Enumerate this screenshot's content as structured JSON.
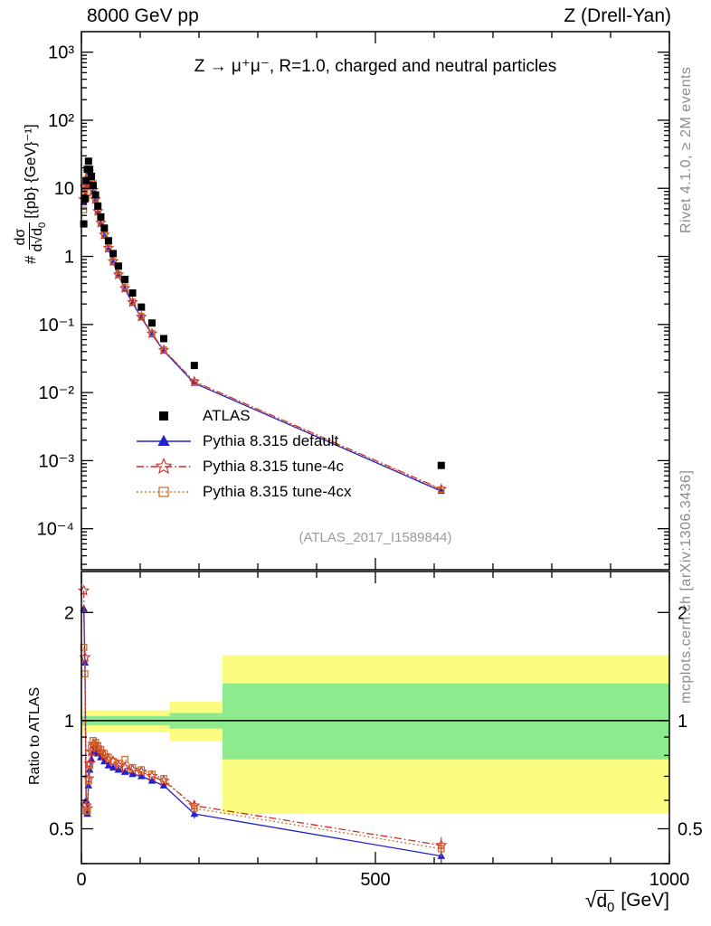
{
  "header": {
    "left": "8000 GeV pp",
    "right": "Z (Drell-Yan)"
  },
  "main_title": "Z → μ⁺μ⁻, R=1.0, charged and neutral particles",
  "watermark": "(ATLAS_2017_I1589844)",
  "side_captions": {
    "top": "Rivet 4.1.0, ≥ 2M events",
    "bottom": "mcplots.cern.ch [arXiv:1306.3436]"
  },
  "axes": {
    "y_label": {
      "prefix": "#",
      "numerator": "dσ",
      "den_prefix": "d",
      "sqrt": "√",
      "rad_base": "d",
      "rad_sub": "0",
      "units": "[{pb} {GeV}⁻¹]"
    },
    "x_label": {
      "sqrt": "√",
      "rad_base": "d",
      "rad_sub": "0",
      "units": "[GeV]"
    },
    "ratio_label": "Ratio to ATLAS"
  },
  "chart_data": {
    "type": "line",
    "title": "Z → μ⁺μ⁻, R=1.0, charged and neutral particles",
    "xlabel": "√d_0 [GeV]",
    "ylabel": "# dσ/d√d_0 [{pb} {GeV}⁻¹]",
    "ratio_ylabel": "Ratio to ATLAS",
    "legend_position": "middle-left",
    "x_axis": {
      "min": 0,
      "max": 1000,
      "major": [
        0,
        500,
        1000
      ],
      "labels": [
        "0",
        "500",
        "1000"
      ],
      "minor_step": 100
    },
    "main_axis": {
      "min": 2.5e-05,
      "max": 2000,
      "log": true,
      "ticks": [
        {
          "v": 1000,
          "label": "10³"
        },
        {
          "v": 100,
          "label": "10²"
        },
        {
          "v": 10,
          "label": "10"
        },
        {
          "v": 1,
          "label": "1"
        },
        {
          "v": 0.1,
          "label": "10⁻¹"
        },
        {
          "v": 0.01,
          "label": "10⁻²"
        },
        {
          "v": 0.001,
          "label": "10⁻³"
        },
        {
          "v": 0.0001,
          "label": "10⁻⁴"
        }
      ]
    },
    "ratio_axis": {
      "min": 0.4,
      "max": 2.6,
      "log": true,
      "ticks": [
        {
          "v": 2,
          "label": "2"
        },
        {
          "v": 1,
          "label": "1"
        },
        {
          "v": 0.5,
          "label": "0.5"
        }
      ],
      "minor": [
        0.4,
        0.6,
        0.7,
        0.8,
        0.9
      ]
    },
    "x_values": [
      4,
      6,
      8,
      10,
      12,
      14,
      17,
      20,
      24,
      28,
      33,
      39,
      46,
      54,
      63,
      74,
      87,
      102,
      120,
      140,
      192,
      612
    ],
    "atlas": {
      "label": "ATLAS",
      "color": "#000000",
      "marker": "square-filled",
      "y": [
        3,
        7,
        13,
        19,
        25,
        19,
        15,
        11,
        8,
        5.5,
        3.8,
        2.6,
        1.7,
        1.1,
        0.72,
        0.46,
        0.29,
        0.18,
        0.105,
        0.062,
        0.025,
        0.00085
      ]
    },
    "series": [
      {
        "label": "Pythia 8.315 default",
        "color": "#2222cc",
        "marker": "triangle-filled",
        "line": "solid",
        "ratio": [
          2.05,
          1.45,
          0.6,
          0.55,
          0.66,
          0.73,
          0.78,
          0.82,
          0.83,
          0.81,
          0.79,
          0.77,
          0.75,
          0.74,
          0.73,
          0.72,
          0.71,
          0.7,
          0.68,
          0.66,
          0.55,
          0.42
        ]
      },
      {
        "label": "Pythia 8.315 tune-4c",
        "color": "#cc2b2b",
        "marker": "star-open",
        "line": "dashdot",
        "ratio": [
          2.3,
          1.5,
          0.58,
          0.57,
          0.69,
          0.76,
          0.82,
          0.86,
          0.86,
          0.84,
          0.82,
          0.8,
          0.78,
          0.77,
          0.75,
          0.74,
          0.73,
          0.72,
          0.7,
          0.68,
          0.58,
          0.45
        ]
      },
      {
        "label": "Pythia 8.315 tune-4cx",
        "color": "#cc6622",
        "marker": "square-open",
        "line": "dotted",
        "ratio": [
          1.6,
          1.35,
          0.56,
          0.56,
          0.68,
          0.75,
          0.84,
          0.88,
          0.87,
          0.85,
          0.83,
          0.81,
          0.79,
          0.77,
          0.76,
          0.78,
          0.74,
          0.73,
          0.71,
          0.69,
          0.57,
          0.44
        ]
      }
    ],
    "bands": {
      "yellow": {
        "color": "#fcfc80",
        "segments": [
          [
            0,
            150,
            0.93,
            1.07
          ],
          [
            150,
            240,
            0.88,
            1.13
          ],
          [
            240,
            1000,
            0.55,
            1.52
          ]
        ]
      },
      "green": {
        "color": "#8deb8d",
        "segments": [
          [
            0,
            150,
            0.97,
            1.03
          ],
          [
            150,
            240,
            0.95,
            1.05
          ],
          [
            240,
            1000,
            0.78,
            1.27
          ]
        ]
      }
    }
  }
}
